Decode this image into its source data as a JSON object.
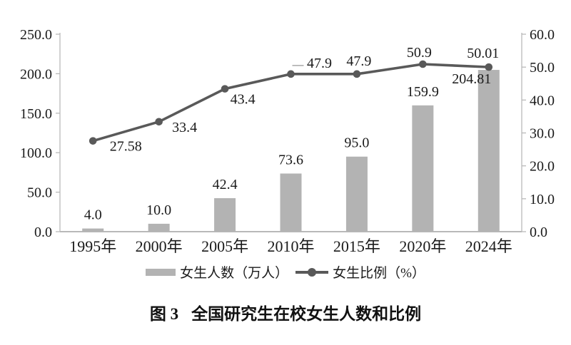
{
  "figure": {
    "background": "#ffffff"
  },
  "colors": {
    "bar": "#b3b3b3",
    "line": "#595959",
    "axis": "#b9b9b9",
    "text": "#1a1a1a",
    "leader": "#a9a9a9"
  },
  "chart_data": {
    "type": "bar",
    "subtype": "combo-bar-line",
    "title": "图 3 全国研究生在校女生人数和比例",
    "categories": [
      "1995年",
      "2000年",
      "2005年",
      "2010年",
      "2015年",
      "2020年",
      "2024年"
    ],
    "series": [
      {
        "name": "女生人数（万人）",
        "type": "bar",
        "axis": "left",
        "color": "#b3b3b3",
        "values": [
          4.0,
          10.0,
          42.4,
          73.6,
          95.0,
          159.9,
          204.81
        ],
        "labels": [
          "4.0",
          "10.0",
          "42.4",
          "73.6",
          "95.0",
          "159.9",
          "204.81"
        ]
      },
      {
        "name": "女生比例（%）",
        "type": "line",
        "axis": "right",
        "color": "#595959",
        "values": [
          27.58,
          33.4,
          43.4,
          47.9,
          47.9,
          50.9,
          50.01
        ],
        "labels": [
          "27.58",
          "33.4",
          "43.4",
          "47.9",
          "47.9",
          "50.9",
          "50.01"
        ]
      }
    ],
    "left_axis": {
      "min": 0,
      "max": 250,
      "ticks": [
        "0.0",
        "50.0",
        "100.0",
        "150.0",
        "200.0",
        "250.0"
      ]
    },
    "right_axis": {
      "min": 0,
      "max": 60,
      "ticks": [
        "0.0",
        "10.0",
        "20.0",
        "30.0",
        "40.0",
        "50.0",
        "60.0"
      ]
    },
    "grid": false,
    "legend_position": "bottom"
  },
  "caption": {
    "prefix": "图 3",
    "text": "全国研究生在校女生人数和比例"
  }
}
